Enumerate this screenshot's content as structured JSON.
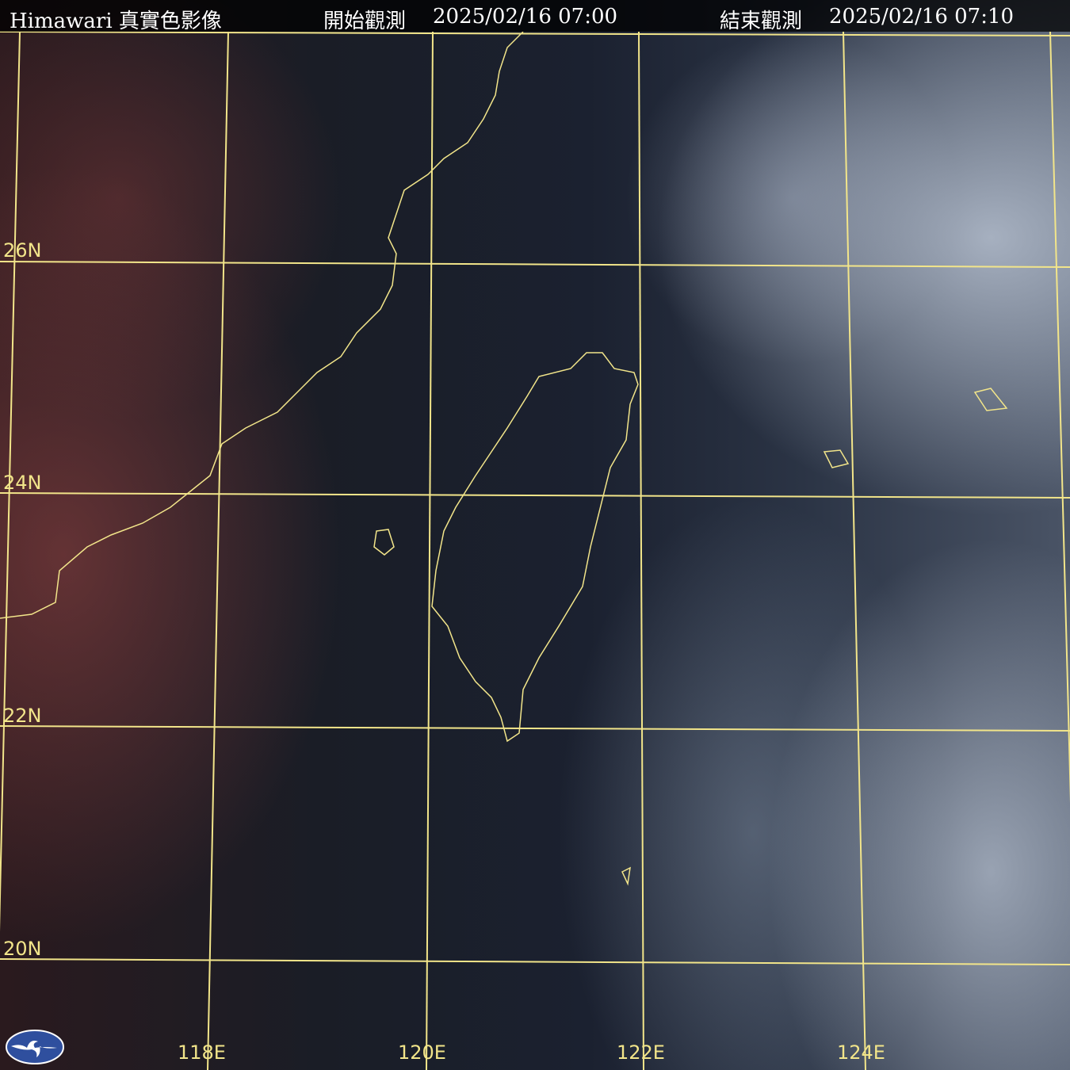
{
  "header": {
    "title": "Himawari 真實色影像",
    "start_label": "開始觀測",
    "start_time": "2025/02/16 07:00",
    "end_label": "結束觀測",
    "end_time": "2025/02/16 07:10"
  },
  "grid": {
    "latitudes": [
      "26N",
      "24N",
      "22N",
      "20N"
    ],
    "longitudes": [
      "118E",
      "120E",
      "122E",
      "124E"
    ],
    "line_color": "#f2e58a"
  },
  "logo": {
    "name": "weather-agency-logo",
    "color": "#2f4f9e"
  }
}
